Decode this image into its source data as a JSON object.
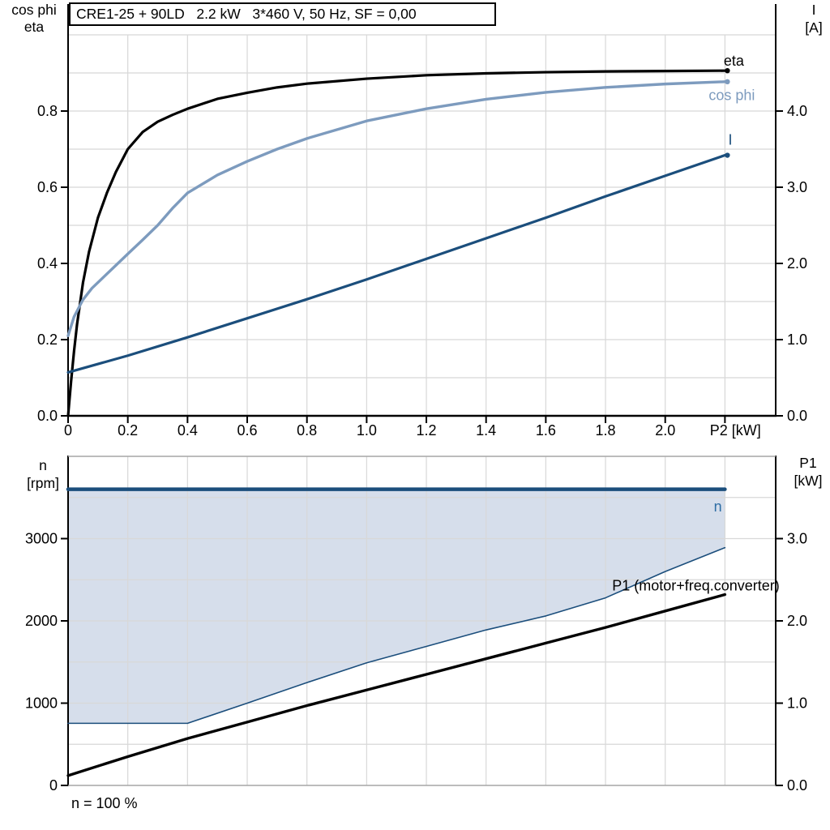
{
  "header": {
    "title": "CRE1-25 + 90LD   2.2 kW   3*460 V, 50 Hz, SF = 0,00"
  },
  "footer": {
    "note": "n = 100 %"
  },
  "colors": {
    "eta": "#000000",
    "cos_phi": "#7D9BBE",
    "current": "#1B4E7C",
    "speed": "#1B4E7C",
    "speed_label": "#2E6DA4",
    "power": "#000000",
    "band_fill": "#D6DEEB",
    "grid": "#D8D8D8",
    "axis": "#000000",
    "frame_gray": "#A6A6A6"
  },
  "axis_corner_labels": {
    "top_left": [
      "cos phi",
      "eta"
    ],
    "top_right": [
      "I",
      "[A]"
    ],
    "bottom_left": [
      "n",
      "[rpm]"
    ],
    "bottom_right": [
      "P1",
      "[kW]"
    ]
  },
  "chart_data": [
    {
      "type": "line",
      "name": "motor-performance-chart",
      "title": "CRE1-25 + 90LD   2.2 kW   3*460 V, 50 Hz, SF = 0,00",
      "x_axis": {
        "label": "P2 [kW]",
        "label_x": 2.235,
        "range": [
          0,
          2.37
        ],
        "grid": {
          "min": 0.2,
          "step": 0.2,
          "max": 2.2
        },
        "tick_values": [
          0,
          0.2,
          0.4,
          0.6,
          0.8,
          1.0,
          1.2,
          1.4,
          1.6,
          1.8,
          2.0,
          2.2
        ],
        "tick_labels": [
          "0",
          "0.2",
          "0.4",
          "0.6",
          "0.8",
          "1.0",
          "1.2",
          "1.4",
          "1.6",
          "1.8",
          "2.0",
          ""
        ]
      },
      "left_axis": {
        "title_lines": [
          "cos phi",
          "eta"
        ],
        "range": [
          0,
          1.0
        ],
        "grid": {
          "min": 0.1,
          "step": 0.1,
          "max": 1.0
        },
        "tick_values": [
          0,
          0.2,
          0.4,
          0.6,
          0.8
        ],
        "tick_labels": [
          "0.0",
          "0.2",
          "0.4",
          "0.6",
          "0.8"
        ]
      },
      "right_axis": {
        "title_lines": [
          "I",
          "[A]"
        ],
        "range": [
          0,
          5.0
        ],
        "tick_values": [
          0,
          1,
          2,
          3,
          4
        ],
        "tick_labels": [
          "0.0",
          "1.0",
          "2.0",
          "3.0",
          "4.0"
        ]
      },
      "series": [
        {
          "name": "eta",
          "label": "eta",
          "axis": "left",
          "color_key": "eta",
          "width": 3.2,
          "end_dot": true,
          "x": [
            0,
            0.01,
            0.02,
            0.03,
            0.05,
            0.07,
            0.1,
            0.13,
            0.16,
            0.2,
            0.25,
            0.3,
            0.35,
            0.4,
            0.5,
            0.6,
            0.7,
            0.8,
            1.0,
            1.2,
            1.4,
            1.6,
            1.8,
            2.0,
            2.2
          ],
          "y": [
            0,
            0.09,
            0.17,
            0.24,
            0.35,
            0.43,
            0.52,
            0.585,
            0.64,
            0.7,
            0.745,
            0.772,
            0.79,
            0.806,
            0.832,
            0.848,
            0.862,
            0.872,
            0.885,
            0.894,
            0.899,
            0.902,
            0.904,
            0.905,
            0.906
          ]
        },
        {
          "name": "cos-phi",
          "label": "cos phi",
          "axis": "left",
          "color_key": "cos_phi",
          "width": 3.4,
          "end_dot": true,
          "x": [
            0,
            0.02,
            0.05,
            0.08,
            0.12,
            0.16,
            0.2,
            0.25,
            0.3,
            0.35,
            0.4,
            0.5,
            0.6,
            0.7,
            0.8,
            1.0,
            1.2,
            1.4,
            1.6,
            1.8,
            2.0,
            2.2
          ],
          "y": [
            0.21,
            0.26,
            0.305,
            0.335,
            0.365,
            0.395,
            0.425,
            0.462,
            0.5,
            0.545,
            0.585,
            0.632,
            0.668,
            0.7,
            0.728,
            0.774,
            0.806,
            0.831,
            0.849,
            0.862,
            0.871,
            0.877
          ]
        },
        {
          "name": "current",
          "label": "I",
          "axis": "right",
          "color_key": "current",
          "width": 3.2,
          "end_dot": true,
          "x": [
            0,
            0.2,
            0.4,
            0.6,
            0.8,
            1.0,
            1.2,
            1.4,
            1.6,
            1.8,
            2.0,
            2.2
          ],
          "y": [
            0.57,
            0.79,
            1.03,
            1.28,
            1.53,
            1.79,
            2.06,
            2.33,
            2.6,
            2.88,
            3.15,
            3.42
          ]
        }
      ],
      "annotations": [
        {
          "name": "eta-label",
          "text": "eta",
          "x": 2.23,
          "y": 0.932,
          "anchor": "middle",
          "color_key": "eta"
        },
        {
          "name": "cos-phi-label",
          "text": "cos phi",
          "x": 2.223,
          "y": 0.842,
          "anchor": "middle",
          "color_key": "cos_phi"
        },
        {
          "name": "current-label",
          "text": "I",
          "x": 2.218,
          "y": 0.724,
          "anchor": "middle",
          "color_key": "current"
        }
      ]
    },
    {
      "type": "line",
      "name": "speed-power-chart",
      "title": "",
      "x_axis": {
        "label": "",
        "label_x": 2.2,
        "range": [
          0,
          2.37
        ],
        "grid": {
          "min": 0.2,
          "step": 0.2,
          "max": 2.2
        },
        "tick_values": [],
        "tick_labels": []
      },
      "left_axis": {
        "title_lines": [
          "n",
          "[rpm]"
        ],
        "range": [
          0,
          4000
        ],
        "grid": {
          "min": 500,
          "step": 500,
          "max": 3500
        },
        "tick_values": [
          0,
          1000,
          2000,
          3000
        ],
        "tick_labels": [
          "0",
          "1000",
          "2000",
          "3000"
        ]
      },
      "right_axis": {
        "title_lines": [
          "P1",
          "[kW]"
        ],
        "range": [
          0,
          4.0
        ],
        "tick_values": [
          0,
          1,
          2,
          3
        ],
        "tick_labels": [
          "0.0",
          "1.0",
          "2.0",
          "3.0"
        ]
      },
      "band": {
        "x": [
          0,
          0.4,
          0.6,
          0.8,
          1.0,
          1.2,
          1.4,
          1.6,
          1.8,
          2.0,
          2.2
        ],
        "lower": [
          755,
          755,
          1000,
          1250,
          1490,
          1690,
          1890,
          2060,
          2280,
          2600,
          2890
        ],
        "upper": 3600
      },
      "series": [
        {
          "name": "speed-min",
          "label": "",
          "axis": "left",
          "color_key": "current",
          "width": 1.6,
          "end_dot": false,
          "x": [
            0,
            0.4,
            0.6,
            0.8,
            1.0,
            1.2,
            1.4,
            1.6,
            1.8,
            2.0,
            2.2
          ],
          "y": [
            755,
            755,
            1000,
            1250,
            1490,
            1690,
            1890,
            2060,
            2280,
            2600,
            2890
          ]
        },
        {
          "name": "speed-max",
          "label": "n",
          "axis": "left",
          "color_key": "speed",
          "width": 4.5,
          "end_dot": false,
          "x": [
            0,
            2.2
          ],
          "y": [
            3600,
            3600
          ]
        },
        {
          "name": "p1-input-power",
          "label": "P1 (motor+freq.converter)",
          "axis": "right",
          "color_key": "power",
          "width": 3.4,
          "end_dot": false,
          "x": [
            0,
            0.2,
            0.4,
            0.6,
            0.8,
            1.0,
            1.2,
            1.4,
            1.6,
            1.8,
            2.0,
            2.2
          ],
          "y": [
            0.12,
            0.35,
            0.57,
            0.77,
            0.97,
            1.16,
            1.35,
            1.54,
            1.73,
            1.92,
            2.12,
            2.32
          ]
        }
      ],
      "annotations": [
        {
          "name": "speed-label",
          "text": "n",
          "x": 2.19,
          "y": 3390,
          "anchor": "end",
          "color_key": "speed_label"
        },
        {
          "name": "p1-label",
          "text": "P1 (motor+freq.converter)",
          "x": 2.383,
          "y": 2430,
          "anchor": "end",
          "color_key": "power"
        }
      ]
    }
  ]
}
